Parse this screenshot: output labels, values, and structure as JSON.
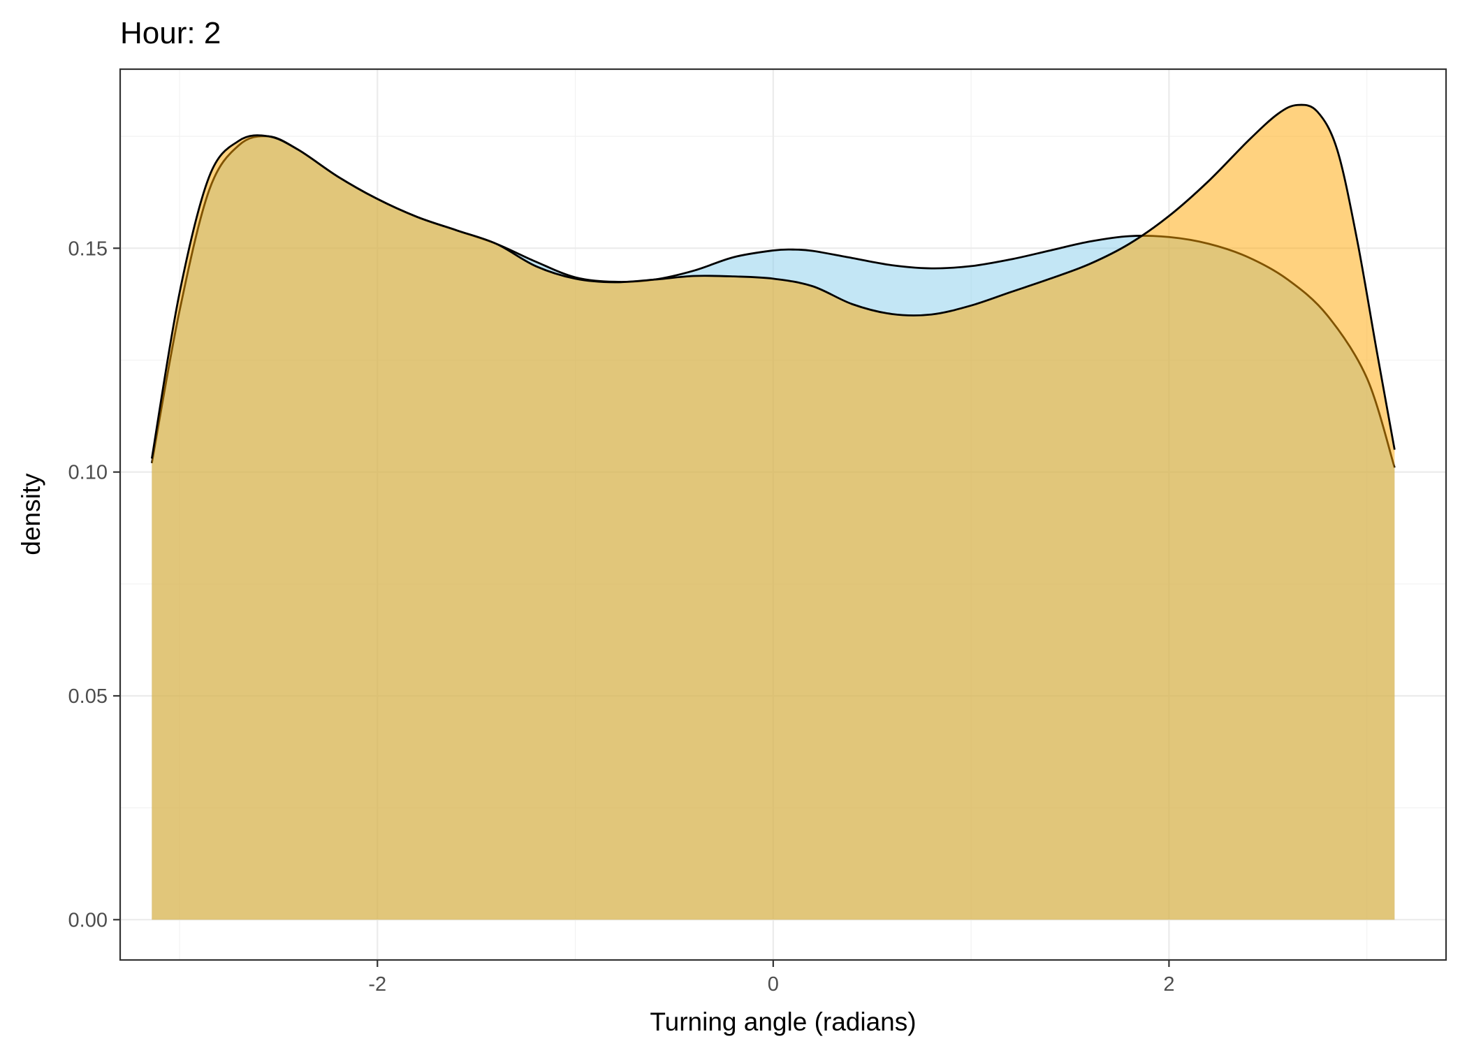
{
  "chart_data": {
    "type": "area",
    "title": "Hour: 2",
    "xlabel": "Turning angle (radians)",
    "ylabel": "density",
    "xlim": [
      -3.3,
      3.4
    ],
    "ylim": [
      -0.009,
      0.19
    ],
    "x_ticks": [
      -2,
      0,
      2
    ],
    "x_tick_labels": [
      "-2",
      "0",
      "2"
    ],
    "y_ticks": [
      0.0,
      0.05,
      0.1,
      0.15
    ],
    "y_tick_labels": [
      "0.00",
      "0.05",
      "0.10",
      "0.15"
    ],
    "grid": true,
    "legend": "none",
    "series": [
      {
        "fill": "#87ceeb",
        "outline": "#000000",
        "points": [
          [
            -3.14,
            0.102
          ],
          [
            -3.0,
            0.136
          ],
          [
            -2.85,
            0.163
          ],
          [
            -2.7,
            0.173
          ],
          [
            -2.55,
            0.175
          ],
          [
            -2.4,
            0.172
          ],
          [
            -2.2,
            0.166
          ],
          [
            -2.0,
            0.161
          ],
          [
            -1.8,
            0.157
          ],
          [
            -1.6,
            0.154
          ],
          [
            -1.4,
            0.151
          ],
          [
            -1.2,
            0.147
          ],
          [
            -1.0,
            0.1435
          ],
          [
            -0.8,
            0.1425
          ],
          [
            -0.6,
            0.143
          ],
          [
            -0.4,
            0.145
          ],
          [
            -0.2,
            0.148
          ],
          [
            0.0,
            0.1495
          ],
          [
            0.1,
            0.1497
          ],
          [
            0.2,
            0.1494
          ],
          [
            0.4,
            0.1478
          ],
          [
            0.6,
            0.1462
          ],
          [
            0.8,
            0.1455
          ],
          [
            1.0,
            0.146
          ],
          [
            1.2,
            0.1475
          ],
          [
            1.4,
            0.1495
          ],
          [
            1.6,
            0.1515
          ],
          [
            1.8,
            0.1527
          ],
          [
            2.0,
            0.1525
          ],
          [
            2.2,
            0.151
          ],
          [
            2.4,
            0.148
          ],
          [
            2.6,
            0.143
          ],
          [
            2.8,
            0.135
          ],
          [
            3.0,
            0.121
          ],
          [
            3.14,
            0.101
          ]
        ]
      },
      {
        "fill": "#ffa500",
        "outline": "#000000",
        "points": [
          [
            -3.14,
            0.103
          ],
          [
            -3.0,
            0.14
          ],
          [
            -2.85,
            0.166
          ],
          [
            -2.7,
            0.174
          ],
          [
            -2.55,
            0.175
          ],
          [
            -2.4,
            0.172
          ],
          [
            -2.2,
            0.166
          ],
          [
            -2.0,
            0.161
          ],
          [
            -1.8,
            0.157
          ],
          [
            -1.6,
            0.154
          ],
          [
            -1.4,
            0.151
          ],
          [
            -1.2,
            0.146
          ],
          [
            -1.0,
            0.1432
          ],
          [
            -0.8,
            0.1424
          ],
          [
            -0.6,
            0.143
          ],
          [
            -0.4,
            0.1438
          ],
          [
            -0.2,
            0.1437
          ],
          [
            0.0,
            0.1432
          ],
          [
            0.2,
            0.1415
          ],
          [
            0.4,
            0.1375
          ],
          [
            0.6,
            0.1353
          ],
          [
            0.8,
            0.1352
          ],
          [
            1.0,
            0.1372
          ],
          [
            1.2,
            0.1402
          ],
          [
            1.4,
            0.1432
          ],
          [
            1.6,
            0.1465
          ],
          [
            1.8,
            0.151
          ],
          [
            2.0,
            0.1572
          ],
          [
            2.2,
            0.165
          ],
          [
            2.4,
            0.174
          ],
          [
            2.55,
            0.18
          ],
          [
            2.65,
            0.182
          ],
          [
            2.75,
            0.1805
          ],
          [
            2.85,
            0.172
          ],
          [
            2.95,
            0.152
          ],
          [
            3.05,
            0.127
          ],
          [
            3.14,
            0.105
          ]
        ]
      }
    ]
  }
}
